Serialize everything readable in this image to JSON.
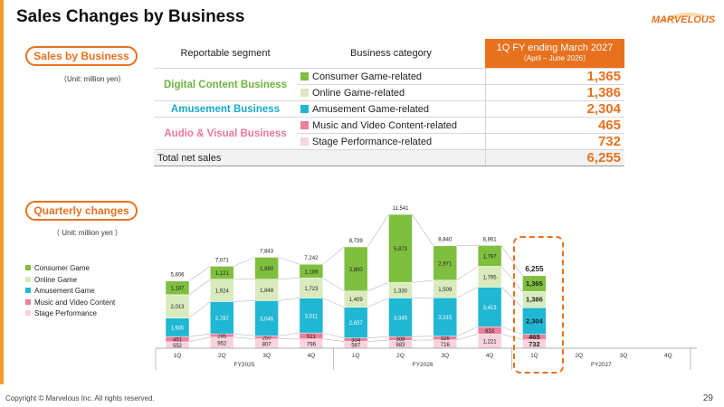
{
  "title": "Sales Changes by Business",
  "logo_text": "MARVELOUS",
  "section1": {
    "pill": "Sales by Business",
    "unit": "（Unit: million yen）",
    "headers": {
      "segment": "Reportable segment",
      "category": "Business category",
      "period": "1Q FY ending March 2027",
      "period_sub": "（April – June 2026）"
    },
    "groups": {
      "digital": "Digital Content Business",
      "amusement": "Amusement Business",
      "audio": "Audio & Visual Business"
    },
    "rows": [
      {
        "category": "Consumer Game-related",
        "value": "1,365",
        "color": "#7fbf3f"
      },
      {
        "category": "Online Game-related",
        "value": "1,386",
        "color": "#d9ebbd"
      },
      {
        "category": "Amusement Game-related",
        "value": "2,304",
        "color": "#1fb7d4"
      },
      {
        "category": "Music and Video Content-related",
        "value": "465",
        "color": "#ec7f9a"
      },
      {
        "category": "Stage Performance-related",
        "value": "732",
        "color": "#f7d3dd"
      }
    ],
    "total_label": "Total net sales",
    "total_value": "6,255",
    "group_colors": {
      "digital": "#6db33f",
      "amusement": "#19a9c9",
      "audio": "#e8799a"
    }
  },
  "section2": {
    "pill": "Quarterly changes",
    "unit": "（ Unit: million yen ）"
  },
  "chart_data": {
    "type": "bar",
    "stacked": true,
    "categories": [
      "1Q",
      "2Q",
      "3Q",
      "4Q",
      "1Q",
      "2Q",
      "3Q",
      "4Q",
      "1Q",
      "2Q",
      "3Q",
      "4Q"
    ],
    "groups": [
      {
        "label": "FY2025",
        "span": [
          0,
          3
        ]
      },
      {
        "label": "FY2026",
        "span": [
          4,
          7
        ]
      },
      {
        "label": "FY2027",
        "span": [
          8,
          11
        ]
      }
    ],
    "series": [
      {
        "name": "Stage Performance",
        "color": "#f7d3dd",
        "values": [
          552,
          952,
          807,
          796,
          587,
          683,
          716,
          1221,
          732,
          null,
          null,
          null
        ]
      },
      {
        "name": "Music and Video Content",
        "color": "#ec7f9a",
        "values": [
          451,
          285,
          250,
          521,
          304,
          308,
          326,
          633,
          465,
          null,
          null,
          null
        ]
      },
      {
        "name": "Amusement Game",
        "color": "#1fb7d4",
        "values": [
          1600,
          2787,
          3046,
          3011,
          2637,
          3345,
          3315,
          3413,
          2304,
          null,
          null,
          null
        ]
      },
      {
        "name": "Online Game",
        "color": "#d9ebbd",
        "values": [
          2013,
          1924,
          1848,
          1723,
          1409,
          1330,
          1509,
          1795,
          1386,
          null,
          null,
          null
        ]
      },
      {
        "name": "Consumer Game",
        "color": "#7fbf3f",
        "values": [
          1187,
          1121,
          1890,
          1189,
          3800,
          5873,
          2971,
          1797,
          1365,
          null,
          null,
          null
        ]
      }
    ],
    "totals": [
      5806,
      7071,
      7843,
      7242,
      8739,
      11541,
      8840,
      8861,
      6255,
      null,
      null,
      null
    ],
    "total_labels": [
      "5,806",
      "7,071",
      "7,843",
      "7,242",
      "8,739",
      "11,541",
      "8,840",
      "8,861",
      "6,255",
      "",
      "",
      ""
    ],
    "value_labels": {
      "Stage Performance": [
        "552",
        "952",
        "807",
        "796",
        "587",
        "683",
        "716",
        "1,221",
        "732",
        "",
        "",
        ""
      ],
      "Music and Video Content": [
        "451",
        "285",
        "250",
        "521",
        "304",
        "308",
        "326",
        "633",
        "465",
        "",
        "",
        ""
      ],
      "Amusement Game": [
        "1,600",
        "2,787",
        "3,046",
        "3,011",
        "2,637",
        "3,345",
        "3,315",
        "3,413",
        "2,304",
        "",
        "",
        ""
      ],
      "Online Game": [
        "2,013",
        "1,924",
        "1,848",
        "1,723",
        "1,409",
        "1,330",
        "1,509",
        "1,795",
        "1,386",
        "",
        "",
        ""
      ],
      "Consumer Game": [
        "1,187",
        "1,121",
        "1,890",
        "1,189",
        "3,800",
        "5,873",
        "2,971",
        "1,797",
        "1,365",
        "",
        "",
        ""
      ]
    },
    "legend": [
      "Consumer Game",
      "Online Game",
      "Amusement Game",
      "Music and Video Content",
      "Stage Performance"
    ],
    "legend_colors": [
      "#7fbf3f",
      "#d9ebbd",
      "#1fb7d4",
      "#ec7f9a",
      "#f7d3dd"
    ],
    "legend_position": "left",
    "highlight_index": 8,
    "highlight_color": "#e8711e"
  },
  "footer": "Copyright © Marvelous Inc. All rights reserved.",
  "page_number": "29"
}
